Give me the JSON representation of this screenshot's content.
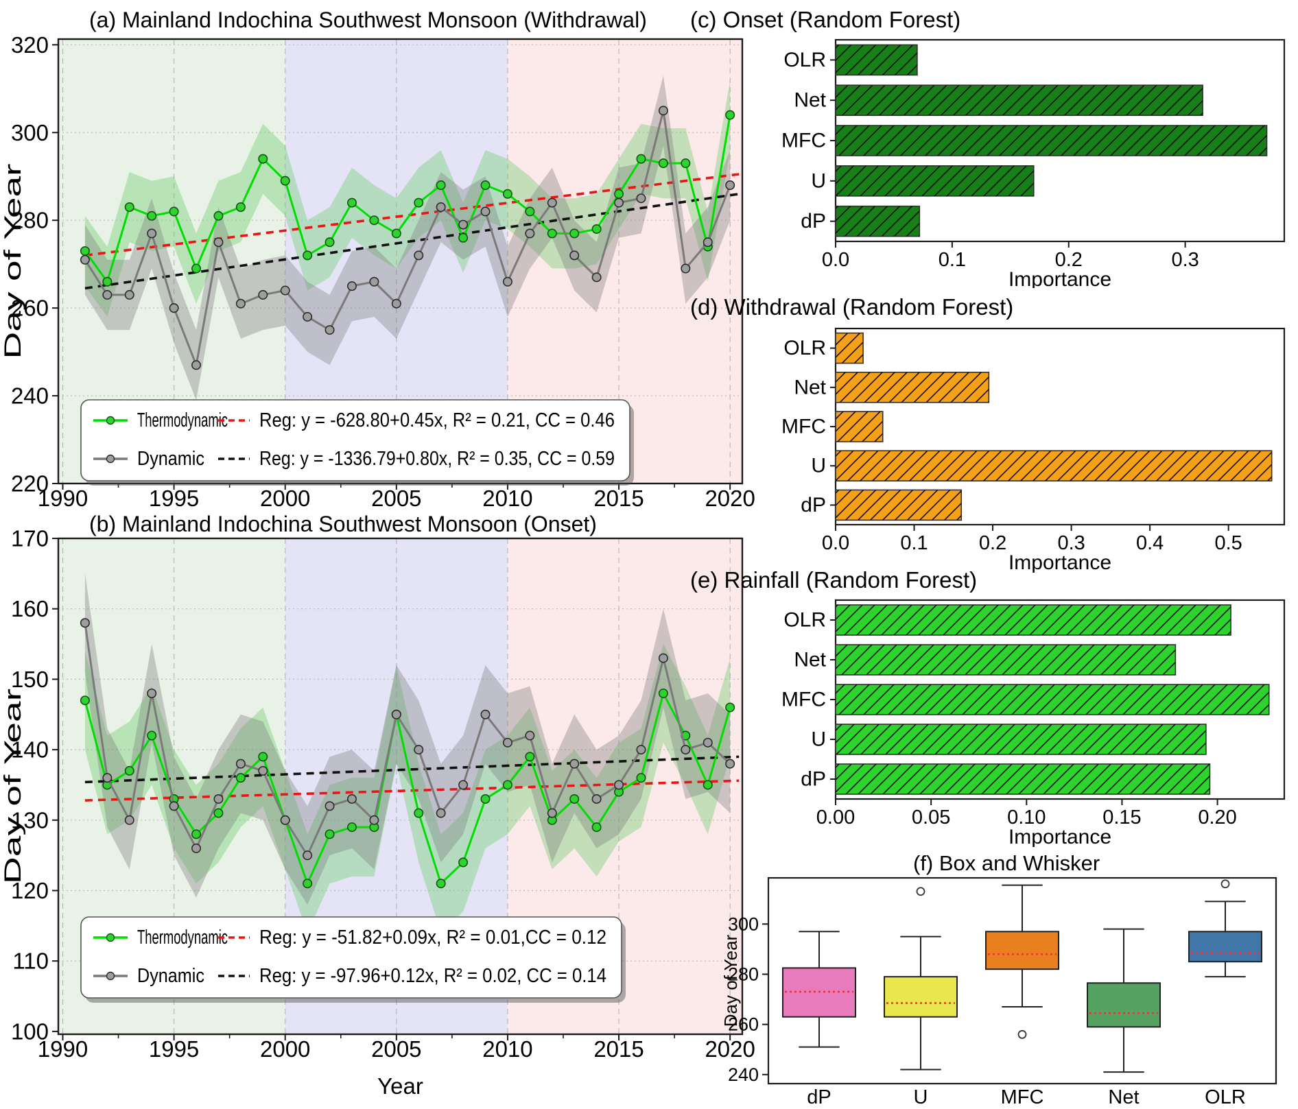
{
  "chart_data": [
    {
      "id": "a",
      "type": "line",
      "title": "(a) Mainland Indochina Southwest Monsoon (Withdrawal)",
      "ylabel": "Day of Year",
      "xlabel": "",
      "xlim": [
        1989.8,
        2020.55
      ],
      "ylim": [
        220,
        321.3
      ],
      "xticks": [
        1990,
        1995,
        2000,
        2005,
        2010,
        2015,
        2020
      ],
      "yticks": [
        220,
        240,
        260,
        280,
        300,
        320
      ],
      "grid": true,
      "x": [
        1991,
        1992,
        1993,
        1994,
        1995,
        1996,
        1997,
        1998,
        1999,
        2000,
        2001,
        2002,
        2003,
        2004,
        2005,
        2006,
        2007,
        2008,
        2009,
        2010,
        2011,
        2012,
        2013,
        2014,
        2015,
        2016,
        2017,
        2018,
        2019,
        2020
      ],
      "series": [
        {
          "name": "Thermodynamic",
          "color": "#00DE00",
          "marker_fill": "#2FD32F",
          "marker_edge": "#145214",
          "band": 8,
          "band_color": "rgba(110,205,110,0.40)",
          "values": [
            273,
            266,
            283,
            281,
            282,
            269,
            281,
            283,
            294,
            289,
            272,
            275,
            284,
            280,
            277,
            284,
            288,
            276,
            288,
            286,
            282,
            277,
            277,
            278,
            286,
            294,
            293,
            293,
            274,
            304
          ]
        },
        {
          "name": "Dynamic",
          "color": "#7A7A7A",
          "marker_fill": "#9E9E9E",
          "marker_edge": "#2B2B2B",
          "band": 8,
          "band_color": "rgba(120,120,120,0.35)",
          "values": [
            271,
            263,
            263,
            277,
            260,
            247,
            275,
            261,
            263,
            264,
            258,
            255,
            265,
            266,
            261,
            272,
            283,
            279,
            282,
            266,
            277,
            284,
            272,
            267,
            284,
            285,
            305,
            269,
            275,
            288
          ]
        }
      ],
      "regressions": [
        {
          "label": "Reg: y = -628.80+0.45x, R² = 0.21, CC = 0.46",
          "color": "#EA1515",
          "x1": 1991,
          "y1": 272,
          "x2": 2020.4,
          "y2": 290.5
        },
        {
          "label": "Reg: y = -1336.79+0.80x, R² = 0.35, CC = 0.59",
          "color": "#111111",
          "x1": 1991,
          "y1": 264.5,
          "x2": 2020.4,
          "y2": 286
        }
      ],
      "eras": [
        {
          "from": 1989.8,
          "to": 2000,
          "color": "#E9F2E6"
        },
        {
          "from": 2000,
          "to": 2010,
          "color": "#E5E4F7"
        },
        {
          "from": 2010,
          "to": 2020.55,
          "color": "#FCE9E9"
        }
      ],
      "legend_pos": "bottom"
    },
    {
      "id": "b",
      "type": "line",
      "title": "(b) Mainland Indochina Southwest Monsoon (Onset)",
      "ylabel": "Day of Year",
      "xlabel": "Year",
      "xlim": [
        1989.8,
        2020.55
      ],
      "ylim": [
        99.6,
        170
      ],
      "xticks": [
        1990,
        1995,
        2000,
        2005,
        2010,
        2015,
        2020
      ],
      "yticks": [
        100,
        110,
        120,
        130,
        140,
        150,
        160,
        170
      ],
      "grid": true,
      "x": [
        1991,
        1992,
        1993,
        1994,
        1995,
        1996,
        1997,
        1998,
        1999,
        2000,
        2001,
        2002,
        2003,
        2004,
        2005,
        2006,
        2007,
        2008,
        2009,
        2010,
        2011,
        2012,
        2013,
        2014,
        2015,
        2016,
        2017,
        2018,
        2019,
        2020
      ],
      "series": [
        {
          "name": "Thermodynamic",
          "color": "#00DE00",
          "marker_fill": "#2FD32F",
          "marker_edge": "#145214",
          "band": 7,
          "band_color": "rgba(110,205,110,0.40)",
          "values": [
            147,
            135,
            137,
            142,
            133,
            128,
            131,
            136,
            139,
            130,
            121,
            128,
            129,
            129,
            145,
            131,
            121,
            124,
            133,
            135,
            139,
            130,
            133,
            129,
            134,
            136,
            148,
            142,
            135,
            146
          ]
        },
        {
          "name": "Dynamic",
          "color": "#7A7A7A",
          "marker_fill": "#9E9E9E",
          "marker_edge": "#2B2B2B",
          "band": 7,
          "band_color": "rgba(120,120,120,0.35)",
          "values": [
            158,
            136,
            130,
            148,
            132,
            126,
            133,
            138,
            137,
            130,
            125,
            132,
            133,
            130,
            145,
            140,
            131,
            135,
            145,
            141,
            142,
            131,
            138,
            133,
            135,
            140,
            153,
            140,
            141,
            138
          ]
        }
      ],
      "regressions": [
        {
          "label": "Reg: y = -51.82+0.09x, R² = 0.01,CC = 0.12",
          "color": "#EA1515",
          "x1": 1991,
          "y1": 132.8,
          "x2": 2020.4,
          "y2": 135.6
        },
        {
          "label": "Reg: y = -97.96+0.12x, R² = 0.02, CC = 0.14",
          "color": "#111111",
          "x1": 1991,
          "y1": 135.4,
          "x2": 2020.4,
          "y2": 139
        }
      ],
      "eras": [
        {
          "from": 1989.8,
          "to": 2000,
          "color": "#E9F2E6"
        },
        {
          "from": 2000,
          "to": 2010,
          "color": "#E5E4F7"
        },
        {
          "from": 2010,
          "to": 2020.55,
          "color": "#FCE9E9"
        }
      ],
      "legend_pos": "bottom"
    },
    {
      "id": "c",
      "type": "bar",
      "title": "(c) Onset (Random Forest)",
      "xlabel": "Importance",
      "categories": [
        "OLR",
        "Net",
        "MFC",
        "U",
        "dP"
      ],
      "values": [
        0.07,
        0.315,
        0.37,
        0.17,
        0.072
      ],
      "bar_color": "#168016",
      "hatch": "/",
      "xmax": 0.385,
      "xticks": [
        {
          "v": 0.0,
          "label": "0.0"
        },
        {
          "v": 0.1,
          "label": "0.1"
        },
        {
          "v": 0.2,
          "label": "0.2"
        },
        {
          "v": 0.3,
          "label": "0.3"
        }
      ]
    },
    {
      "id": "d",
      "type": "bar",
      "title": "(d) Withdrawal (Random Forest)",
      "xlabel": "Importance",
      "categories": [
        "OLR",
        "Net",
        "MFC",
        "U",
        "dP"
      ],
      "values": [
        0.035,
        0.195,
        0.06,
        0.555,
        0.16
      ],
      "bar_color": "#F5A019",
      "hatch": "/",
      "xmax": 0.571,
      "xticks": [
        {
          "v": 0.0,
          "label": "0.0"
        },
        {
          "v": 0.1,
          "label": "0.1"
        },
        {
          "v": 0.2,
          "label": "0.2"
        },
        {
          "v": 0.3,
          "label": "0.3"
        },
        {
          "v": 0.4,
          "label": "0.4"
        },
        {
          "v": 0.5,
          "label": "0.5"
        }
      ]
    },
    {
      "id": "e",
      "type": "bar",
      "title": "(e) Rainfall (Random Forest)",
      "xlabel": "Importance",
      "categories": [
        "OLR",
        "Net",
        "MFC",
        "U",
        "dP"
      ],
      "values": [
        0.207,
        0.178,
        0.227,
        0.194,
        0.196
      ],
      "bar_color": "#2ED32E",
      "hatch": "/",
      "xmax": 0.235,
      "xticks": [
        {
          "v": 0.0,
          "label": "0.00"
        },
        {
          "v": 0.05,
          "label": "0.05"
        },
        {
          "v": 0.1,
          "label": "0.10"
        },
        {
          "v": 0.15,
          "label": "0.15"
        },
        {
          "v": 0.2,
          "label": "0.20"
        }
      ]
    },
    {
      "id": "f",
      "type": "box",
      "title": "(f) Box and Whisker",
      "ylabel": "Day of Year",
      "ylim": [
        236.4,
        318.4
      ],
      "yticks": [
        240,
        260,
        280,
        300
      ],
      "median_color": "#EE3333",
      "boxes": [
        {
          "label": "dP",
          "color": "#E87BBB",
          "lo": 251,
          "q1": 263,
          "med": 273,
          "q3": 282.5,
          "hi": 297,
          "outliers": []
        },
        {
          "label": "U",
          "color": "#E9E64E",
          "lo": 242,
          "q1": 263,
          "med": 268.5,
          "q3": 279,
          "hi": 295,
          "outliers": [
            313
          ]
        },
        {
          "label": "MFC",
          "color": "#E8801F",
          "lo": 267,
          "q1": 282,
          "med": 288,
          "q3": 297,
          "hi": 315.5,
          "outliers": [
            256
          ]
        },
        {
          "label": "Net",
          "color": "#56A262",
          "lo": 241,
          "q1": 259,
          "med": 264.5,
          "q3": 276.5,
          "hi": 298,
          "outliers": []
        },
        {
          "label": "OLR",
          "color": "#4077A8",
          "lo": 279,
          "q1": 285,
          "med": 288.5,
          "q3": 297,
          "hi": 309,
          "outliers": [
            316
          ]
        }
      ]
    }
  ]
}
